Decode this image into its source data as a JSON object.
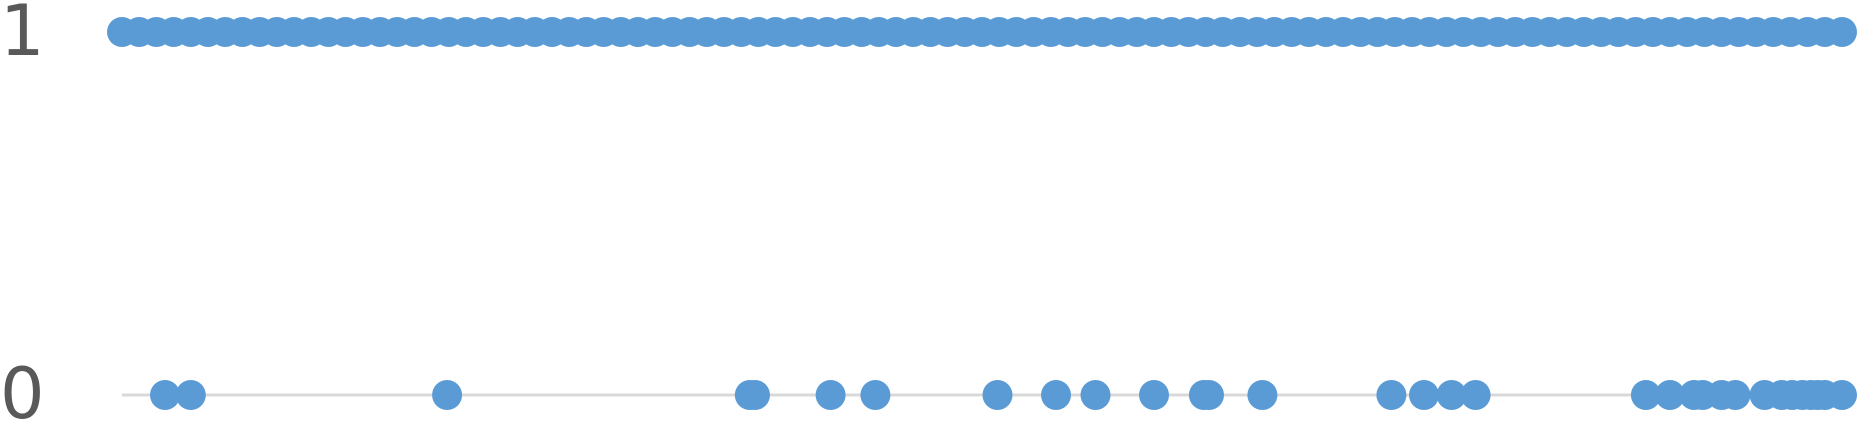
{
  "chart_data": {
    "type": "scatter",
    "title": "",
    "xlabel": "",
    "ylabel": "",
    "ylim": [
      0,
      1
    ],
    "y_ticks": [
      "0",
      "1"
    ],
    "grid": false,
    "legend": "none",
    "colors": {
      "points": "#5b9bd5",
      "axis": "#d9d9d9",
      "tick_text": "#595959"
    },
    "series": [
      {
        "values": [
          {
            "x": 0.025,
            "y": 0
          },
          {
            "x": 0.04,
            "y": 0
          },
          {
            "x": 0.189,
            "y": 0
          },
          {
            "x": 0.365,
            "y": 0
          },
          {
            "x": 0.368,
            "y": 0
          },
          {
            "x": 0.412,
            "y": 0
          },
          {
            "x": 0.438,
            "y": 0
          },
          {
            "x": 0.509,
            "y": 0
          },
          {
            "x": 0.543,
            "y": 0
          },
          {
            "x": 0.566,
            "y": 0
          },
          {
            "x": 0.6,
            "y": 0
          },
          {
            "x": 0.629,
            "y": 0
          },
          {
            "x": 0.632,
            "y": 0
          },
          {
            "x": 0.663,
            "y": 0
          },
          {
            "x": 0.738,
            "y": 0
          },
          {
            "x": 0.757,
            "y": 0
          },
          {
            "x": 0.773,
            "y": 0
          },
          {
            "x": 0.787,
            "y": 0
          },
          {
            "x": 0.886,
            "y": 0
          },
          {
            "x": 0.9,
            "y": 0
          },
          {
            "x": 0.914,
            "y": 0
          },
          {
            "x": 0.919,
            "y": 0
          },
          {
            "x": 0.93,
            "y": 0
          },
          {
            "x": 0.938,
            "y": 0
          },
          {
            "x": 0.955,
            "y": 0
          },
          {
            "x": 0.965,
            "y": 0
          },
          {
            "x": 0.971,
            "y": 0
          },
          {
            "x": 0.977,
            "y": 0
          },
          {
            "x": 0.982,
            "y": 0
          },
          {
            "x": 0.986,
            "y": 0
          },
          {
            "x": 0.99,
            "y": 0
          },
          {
            "x": 1.0,
            "y": 0
          },
          {
            "x": 0.0,
            "y": 1
          },
          {
            "x": 0.01,
            "y": 1
          },
          {
            "x": 0.02,
            "y": 1
          },
          {
            "x": 0.03,
            "y": 1
          },
          {
            "x": 0.04,
            "y": 1
          },
          {
            "x": 0.05,
            "y": 1
          },
          {
            "x": 0.06,
            "y": 1
          },
          {
            "x": 0.07,
            "y": 1
          },
          {
            "x": 0.08,
            "y": 1
          },
          {
            "x": 0.09,
            "y": 1
          },
          {
            "x": 0.1,
            "y": 1
          },
          {
            "x": 0.11,
            "y": 1
          },
          {
            "x": 0.12,
            "y": 1
          },
          {
            "x": 0.13,
            "y": 1
          },
          {
            "x": 0.14,
            "y": 1
          },
          {
            "x": 0.15,
            "y": 1
          },
          {
            "x": 0.16,
            "y": 1
          },
          {
            "x": 0.17,
            "y": 1
          },
          {
            "x": 0.18,
            "y": 1
          },
          {
            "x": 0.19,
            "y": 1
          },
          {
            "x": 0.2,
            "y": 1
          },
          {
            "x": 0.21,
            "y": 1
          },
          {
            "x": 0.22,
            "y": 1
          },
          {
            "x": 0.23,
            "y": 1
          },
          {
            "x": 0.24,
            "y": 1
          },
          {
            "x": 0.25,
            "y": 1
          },
          {
            "x": 0.26,
            "y": 1
          },
          {
            "x": 0.27,
            "y": 1
          },
          {
            "x": 0.28,
            "y": 1
          },
          {
            "x": 0.29,
            "y": 1
          },
          {
            "x": 0.3,
            "y": 1
          },
          {
            "x": 0.31,
            "y": 1
          },
          {
            "x": 0.32,
            "y": 1
          },
          {
            "x": 0.33,
            "y": 1
          },
          {
            "x": 0.34,
            "y": 1
          },
          {
            "x": 0.35,
            "y": 1
          },
          {
            "x": 0.36,
            "y": 1
          },
          {
            "x": 0.37,
            "y": 1
          },
          {
            "x": 0.38,
            "y": 1
          },
          {
            "x": 0.39,
            "y": 1
          },
          {
            "x": 0.4,
            "y": 1
          },
          {
            "x": 0.41,
            "y": 1
          },
          {
            "x": 0.42,
            "y": 1
          },
          {
            "x": 0.43,
            "y": 1
          },
          {
            "x": 0.44,
            "y": 1
          },
          {
            "x": 0.45,
            "y": 1
          },
          {
            "x": 0.46,
            "y": 1
          },
          {
            "x": 0.47,
            "y": 1
          },
          {
            "x": 0.48,
            "y": 1
          },
          {
            "x": 0.49,
            "y": 1
          },
          {
            "x": 0.5,
            "y": 1
          },
          {
            "x": 0.51,
            "y": 1
          },
          {
            "x": 0.52,
            "y": 1
          },
          {
            "x": 0.53,
            "y": 1
          },
          {
            "x": 0.54,
            "y": 1
          },
          {
            "x": 0.55,
            "y": 1
          },
          {
            "x": 0.56,
            "y": 1
          },
          {
            "x": 0.57,
            "y": 1
          },
          {
            "x": 0.58,
            "y": 1
          },
          {
            "x": 0.59,
            "y": 1
          },
          {
            "x": 0.6,
            "y": 1
          },
          {
            "x": 0.61,
            "y": 1
          },
          {
            "x": 0.62,
            "y": 1
          },
          {
            "x": 0.63,
            "y": 1
          },
          {
            "x": 0.64,
            "y": 1
          },
          {
            "x": 0.65,
            "y": 1
          },
          {
            "x": 0.66,
            "y": 1
          },
          {
            "x": 0.67,
            "y": 1
          },
          {
            "x": 0.68,
            "y": 1
          },
          {
            "x": 0.69,
            "y": 1
          },
          {
            "x": 0.7,
            "y": 1
          },
          {
            "x": 0.71,
            "y": 1
          },
          {
            "x": 0.72,
            "y": 1
          },
          {
            "x": 0.73,
            "y": 1
          },
          {
            "x": 0.74,
            "y": 1
          },
          {
            "x": 0.75,
            "y": 1
          },
          {
            "x": 0.76,
            "y": 1
          },
          {
            "x": 0.77,
            "y": 1
          },
          {
            "x": 0.78,
            "y": 1
          },
          {
            "x": 0.79,
            "y": 1
          },
          {
            "x": 0.8,
            "y": 1
          },
          {
            "x": 0.81,
            "y": 1
          },
          {
            "x": 0.82,
            "y": 1
          },
          {
            "x": 0.83,
            "y": 1
          },
          {
            "x": 0.84,
            "y": 1
          },
          {
            "x": 0.85,
            "y": 1
          },
          {
            "x": 0.86,
            "y": 1
          },
          {
            "x": 0.87,
            "y": 1
          },
          {
            "x": 0.88,
            "y": 1
          },
          {
            "x": 0.89,
            "y": 1
          },
          {
            "x": 0.9,
            "y": 1
          },
          {
            "x": 0.91,
            "y": 1
          },
          {
            "x": 0.92,
            "y": 1
          },
          {
            "x": 0.93,
            "y": 1
          },
          {
            "x": 0.94,
            "y": 1
          },
          {
            "x": 0.95,
            "y": 1
          },
          {
            "x": 0.96,
            "y": 1
          },
          {
            "x": 0.97,
            "y": 1
          },
          {
            "x": 0.98,
            "y": 1
          },
          {
            "x": 0.99,
            "y": 1
          },
          {
            "x": 1.0,
            "y": 1
          }
        ]
      }
    ]
  }
}
